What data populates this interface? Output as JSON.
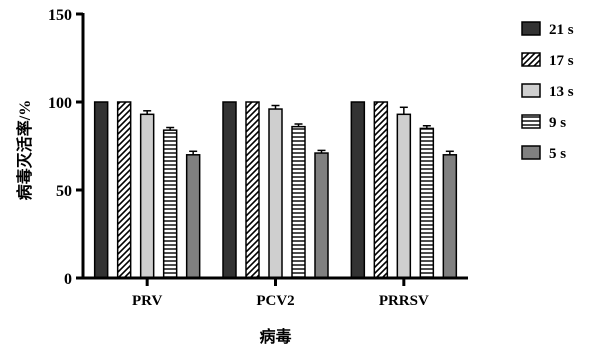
{
  "chart_data": {
    "type": "bar",
    "title": "",
    "xlabel": "病毒",
    "ylabel": "病毒灭活率/%",
    "ylim": [
      0,
      150
    ],
    "yticks": [
      "0",
      "50",
      "100",
      "150"
    ],
    "categories": [
      "PRV",
      "PCV2",
      "PRRSV"
    ],
    "series": [
      {
        "name": "21 s",
        "values": [
          100,
          100,
          100
        ],
        "errors": [
          0,
          0,
          0
        ],
        "color": "#333333",
        "pattern": "solid"
      },
      {
        "name": "17 s",
        "values": [
          100,
          100,
          100
        ],
        "errors": [
          0,
          0,
          0
        ],
        "color": "#ffffff",
        "pattern": "diagonal"
      },
      {
        "name": "13 s",
        "values": [
          93,
          96,
          93
        ],
        "errors": [
          2,
          2,
          4
        ],
        "color": "#cfcfcf",
        "pattern": "solid"
      },
      {
        "name": "9 s",
        "values": [
          84,
          86,
          85
        ],
        "errors": [
          1.5,
          1.5,
          1.5
        ],
        "color": "#ffffff",
        "pattern": "horizontal"
      },
      {
        "name": "5 s",
        "values": [
          70,
          71,
          70
        ],
        "errors": [
          2,
          1.5,
          2
        ],
        "color": "#808080",
        "pattern": "solid"
      }
    ],
    "legend_position": "right",
    "grid": false
  }
}
